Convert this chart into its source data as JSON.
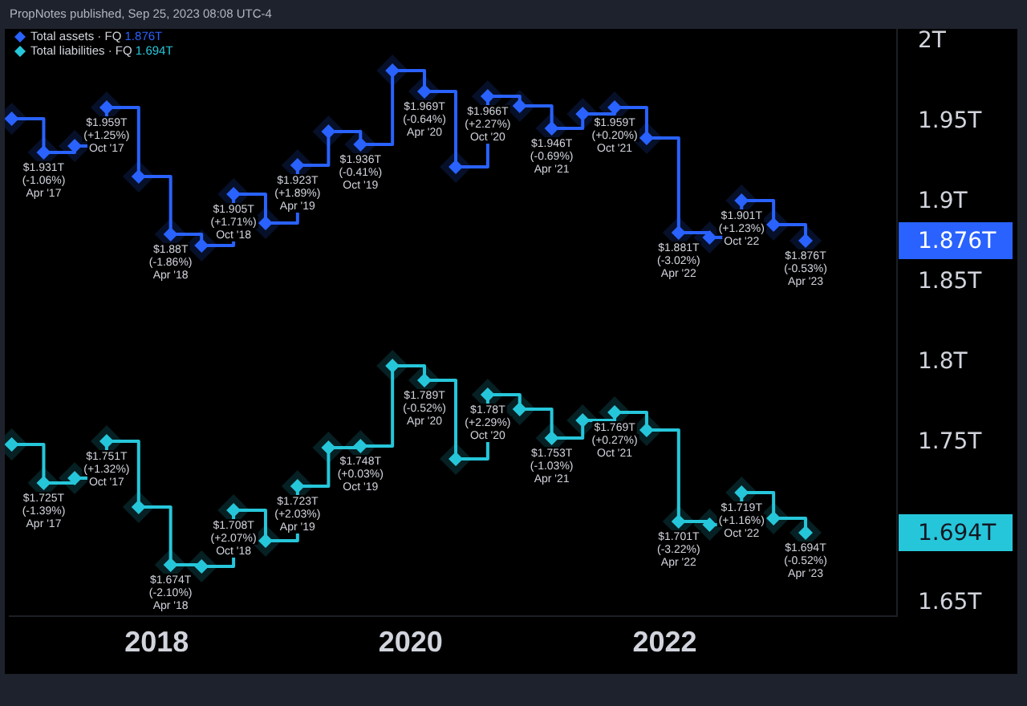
{
  "chart_data": {
    "type": "step",
    "annotations": [
      "PropNotes published, Sep 25, 2023 08:08 UTC-4",
      "1.876T",
      "1.694T",
      {
        "text": "(-1.06%)\nApr '17",
        "x": "2017-02-10",
        "y": 1.931
      },
      {
        "text": "(+1.25%)\nOct '17",
        "x": "2017-08-10",
        "y": 1.959
      },
      {
        "text": "(-1.86%)\nApr '18",
        "x": "2018-02-10",
        "y": 1.88
      },
      {
        "text": "(+1.71%)\nOct '18",
        "x": "2018-08-10",
        "y": 1.905
      },
      {
        "text": "(+1.89%)\nApr '19",
        "x": "2019-02-10",
        "y": 1.923
      },
      {
        "text": "(-0.41%)\nOct '19",
        "x": "2019-08-10",
        "y": 1.936
      },
      {
        "text": "(-0.64%)\nApr '20",
        "x": "2020-02-10",
        "y": 1.969
      },
      {
        "text": "(+2.27%)\nOct '20",
        "x": "2020-08-10",
        "y": 1.966
      },
      {
        "text": "(-0.69%)\nApr '21",
        "x": "2021-02-10",
        "y": 1.946
      },
      {
        "text": "(+0.20%)\nOct '21",
        "x": "2021-08-10",
        "y": 1.959
      },
      {
        "text": "(-3.02%)\nApr '22",
        "x": "2022-02-10",
        "y": 1.881
      },
      {
        "text": "(+1.23%)\nOct '22",
        "x": "2022-08-10",
        "y": 1.901
      },
      {
        "text": "(-0.53%)\nApr '23",
        "x": "2023-02-10",
        "y": 1.876
      },
      {
        "text": "(-1.39%)\nApr '17",
        "x": "2017-02-10",
        "y": 1.725
      },
      {
        "text": "(+1.32%)\nOct '17",
        "x": "2017-08-10",
        "y": 1.751
      },
      {
        "text": "(-2.10%)\nApr '18",
        "x": "2018-02-10",
        "y": 1.674
      },
      {
        "text": "(+2.07%)\nOct '18",
        "x": "2018-08-10",
        "y": 1.708
      },
      {
        "text": "(+2.03%)\nApr '19",
        "x": "2019-02-10",
        "y": 1.723
      },
      {
        "text": "(+0.03%)\nOct '19",
        "x": "2019-08-10",
        "y": 1.748
      },
      {
        "text": "(-0.52%)\nApr '20",
        "x": "2020-02-10",
        "y": 1.789
      },
      {
        "text": "(+2.29%)\nOct '20",
        "x": "2020-08-10",
        "y": 1.78
      },
      {
        "text": "(-1.03%)\nApr '21",
        "x": "2021-02-10",
        "y": 1.753
      },
      {
        "text": "(+0.27%)\nOct '21",
        "x": "2021-08-10",
        "y": 1.769
      },
      {
        "text": "(-3.22%)\nApr '22",
        "x": "2022-02-10",
        "y": 1.701
      },
      {
        "text": "(+1.16%)\nOct '22",
        "x": "2022-08-10",
        "y": 1.719
      },
      {
        "text": "(-0.52%)\nApr '23",
        "x": "2023-02-10",
        "y": 1.694
      }
    ],
    "x": [
      "2016-11-10",
      "2017-02-10",
      "2017-05-10",
      "2017-08-10",
      "2017-11-10",
      "2018-02-10",
      "2018-05-10",
      "2018-08-10",
      "2018-11-10",
      "2019-02-10",
      "2019-05-10",
      "2019-08-10",
      "2019-11-10",
      "2020-02-10",
      "2020-05-10",
      "2020-08-10",
      "2020-11-10",
      "2021-02-10",
      "2021-05-10",
      "2021-08-10",
      "2021-11-10",
      "2022-02-10",
      "2022-05-10",
      "2022-08-10",
      "2022-11-10",
      "2023-02-10"
    ],
    "series": [
      {
        "name": "Total assets · FQ",
        "color": "#2962ff",
        "values": [
          1.952,
          1.931,
          1.935,
          1.959,
          1.916,
          1.88,
          1.873,
          1.905,
          1.887,
          1.923,
          1.944,
          1.936,
          1.982,
          1.969,
          1.922,
          1.966,
          1.96,
          1.946,
          1.955,
          1.959,
          1.94,
          1.881,
          1.878,
          1.901,
          1.886,
          1.876
        ],
        "value_labels": [
          null,
          "$1.931T",
          null,
          "$1.959T",
          null,
          "$1.88T",
          null,
          "$1.905T",
          null,
          "$1.923T",
          null,
          "$1.936T",
          null,
          "$1.969T",
          null,
          "$1.966T",
          null,
          "$1.946T",
          null,
          "$1.959T",
          null,
          "$1.881T",
          null,
          "$1.901T",
          null,
          "$1.876T"
        ]
      },
      {
        "name": "Total liabilities · FQ",
        "color": "#26c6da",
        "values": [
          1.749,
          1.725,
          1.728,
          1.751,
          1.71,
          1.674,
          1.673,
          1.708,
          1.689,
          1.723,
          1.747,
          1.748,
          1.798,
          1.789,
          1.74,
          1.78,
          1.771,
          1.753,
          1.764,
          1.769,
          1.758,
          1.701,
          1.699,
          1.719,
          1.703,
          1.694
        ],
        "value_labels": [
          null,
          "$1.725T",
          null,
          "$1.751T",
          null,
          "$1.674T",
          null,
          "$1.708T",
          null,
          "$1.723T",
          null,
          "$1.748T",
          null,
          "$1.789T",
          null,
          "$1.78T",
          null,
          "$1.753T",
          null,
          "$1.769T",
          null,
          "$1.701T",
          null,
          "$1.719T",
          null,
          "$1.694T"
        ]
      }
    ],
    "xlim": [
      "2016-11-04",
      "2023-10-31"
    ],
    "xticks": [
      "2018",
      "2020",
      "2022"
    ],
    "ylim": [
      1.642,
      2.008
    ],
    "yticks": [
      {
        "value": 2,
        "label": "2T"
      },
      {
        "value": 1.95,
        "label": "1.95T"
      },
      {
        "value": 1.9,
        "label": "1.9T"
      },
      {
        "value": 1.85,
        "label": "1.85T"
      },
      {
        "value": 1.8,
        "label": "1.8T"
      },
      {
        "value": 1.75,
        "label": "1.75T"
      },
      {
        "value": 1.65,
        "label": "1.65T"
      }
    ],
    "grid": false,
    "legend": "top left",
    "marker": "diamond",
    "line_style": "solid"
  }
}
